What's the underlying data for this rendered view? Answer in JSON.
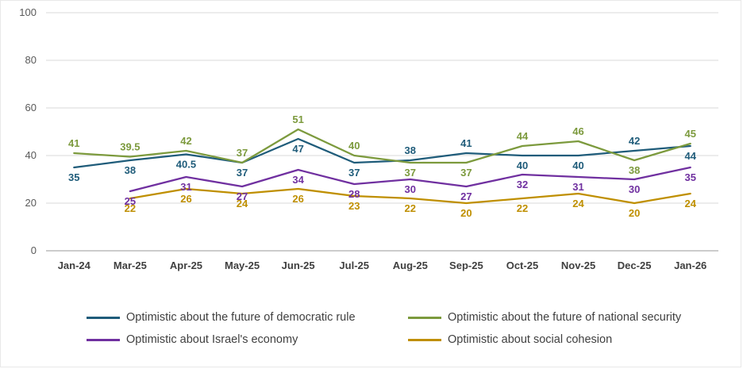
{
  "chart_data": {
    "type": "line",
    "title": "",
    "xlabel": "",
    "ylabel": "",
    "ylim": [
      0,
      100
    ],
    "yticks": [
      0,
      20,
      40,
      60,
      80,
      100
    ],
    "grid": true,
    "legend_position": "bottom",
    "categories": [
      "Jan-24",
      "Mar-25",
      "Apr-25",
      "May-25",
      "Jun-25",
      "Jul-25",
      "Aug-25",
      "Sep-25",
      "Oct-25",
      "Nov-25",
      "Dec-25",
      "Jan-26"
    ],
    "series": [
      {
        "name": "Optimistic about the future of democratic rule",
        "color": "#1F5C7A",
        "values": [
          35,
          38,
          40.5,
          37,
          47,
          37,
          38,
          41,
          40,
          40,
          42,
          44
        ]
      },
      {
        "name": "Optimistic about the future of national security",
        "color": "#7C9A3D",
        "values": [
          41,
          39.5,
          42,
          37,
          51,
          40,
          37,
          37,
          44,
          46,
          38,
          45
        ]
      },
      {
        "name": "Optimistic about Israel's economy",
        "color": "#7030A0",
        "values": [
          null,
          25,
          31,
          27,
          34,
          28,
          30,
          27,
          32,
          31,
          30,
          35
        ]
      },
      {
        "name": "Optimistic about social cohesion",
        "color": "#BF8F00",
        "values": [
          null,
          22,
          26,
          24,
          26,
          23,
          22,
          20,
          22,
          24,
          20,
          24
        ]
      }
    ],
    "colors": {
      "gridline": "#d9d9d9",
      "axis_line": "#9a9a9a",
      "ytick_text": "#595959",
      "xtick_text": "#3f3f3f",
      "legend_text": "#404040"
    }
  }
}
